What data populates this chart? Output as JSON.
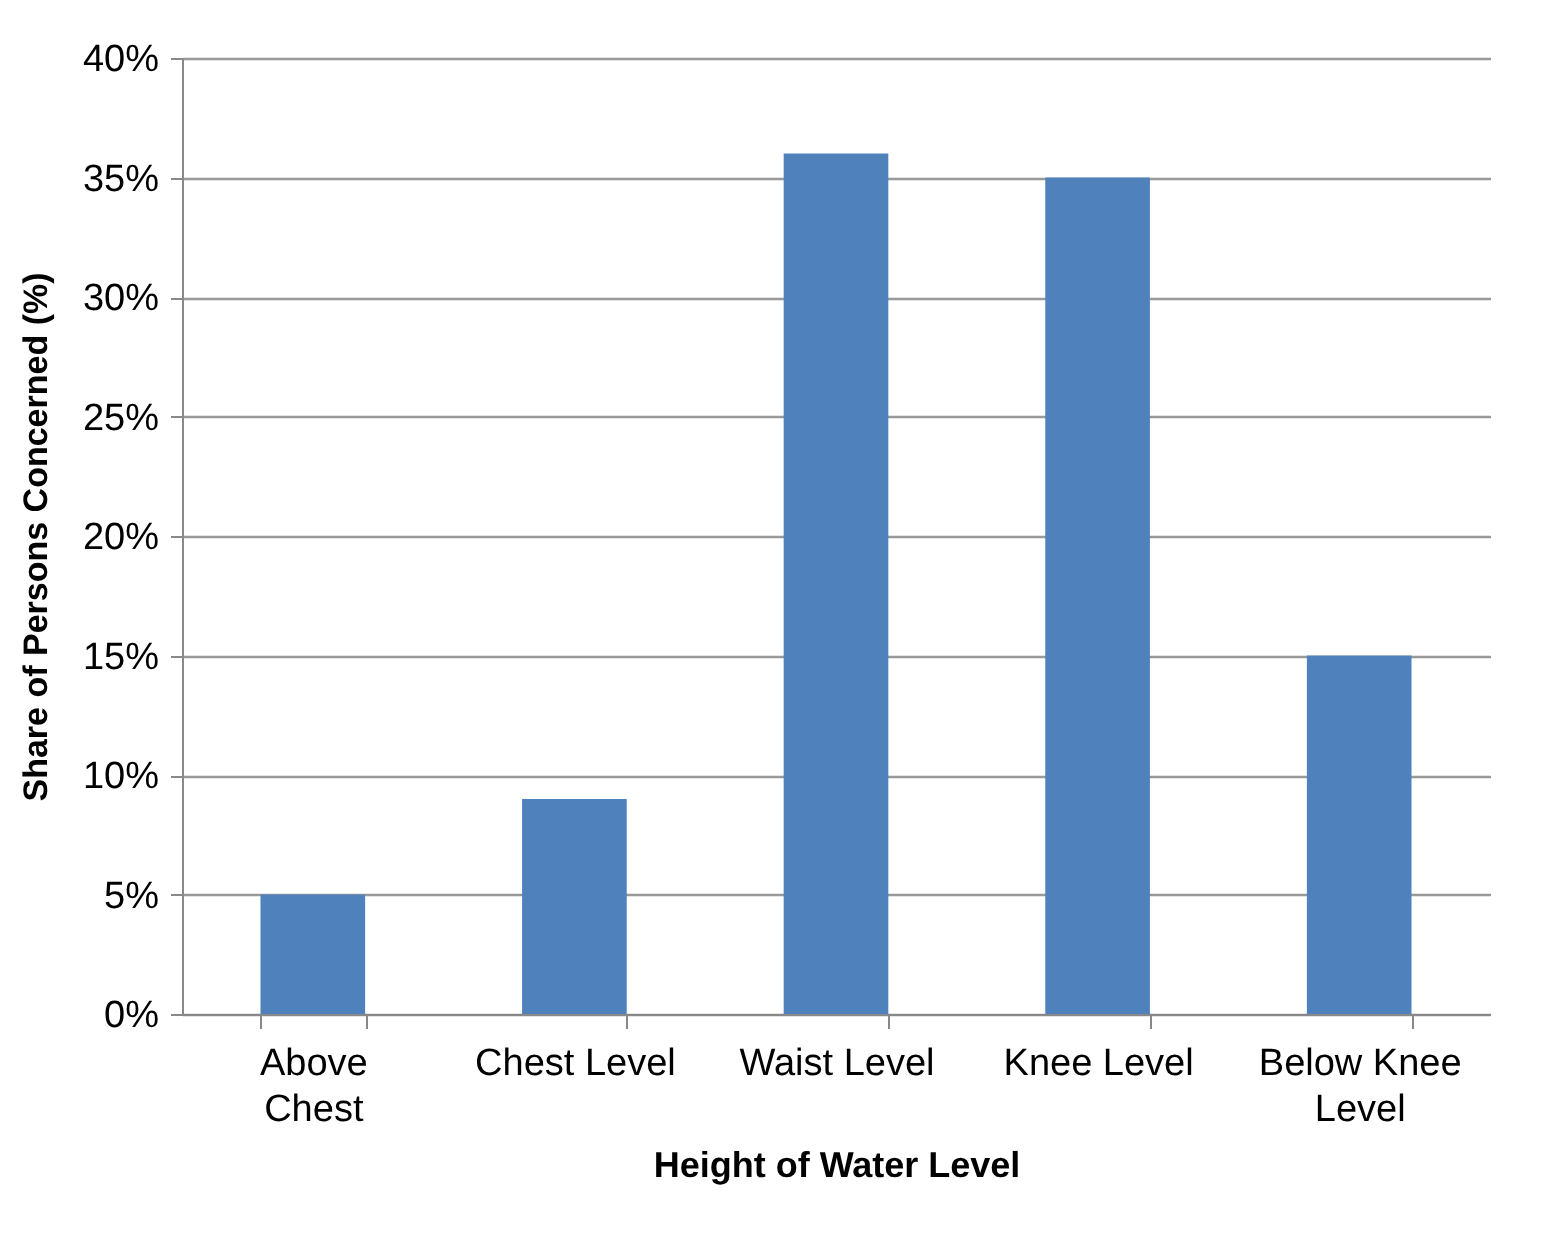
{
  "chart_data": {
    "type": "bar",
    "xlabel": "Height of Water Level",
    "ylabel": "Share of Persons Concerned (%)",
    "categories": [
      "Above Chest",
      "Chest Level",
      "Waist Level",
      "Knee Level",
      "Below Knee Level"
    ],
    "values": [
      5,
      9,
      36,
      35,
      15
    ],
    "color": "#4f81bd",
    "ylim": [
      0,
      40
    ],
    "yticks": [
      {
        "value": 0,
        "label": "0%"
      },
      {
        "value": 5,
        "label": "5%"
      },
      {
        "value": 10,
        "label": "10%"
      },
      {
        "value": 15,
        "label": "15%"
      },
      {
        "value": 20,
        "label": "20%"
      },
      {
        "value": 25,
        "label": "25%"
      },
      {
        "value": 30,
        "label": "30%"
      },
      {
        "value": 35,
        "label": "35%"
      },
      {
        "value": 40,
        "label": "40%"
      }
    ],
    "grid": "y"
  }
}
